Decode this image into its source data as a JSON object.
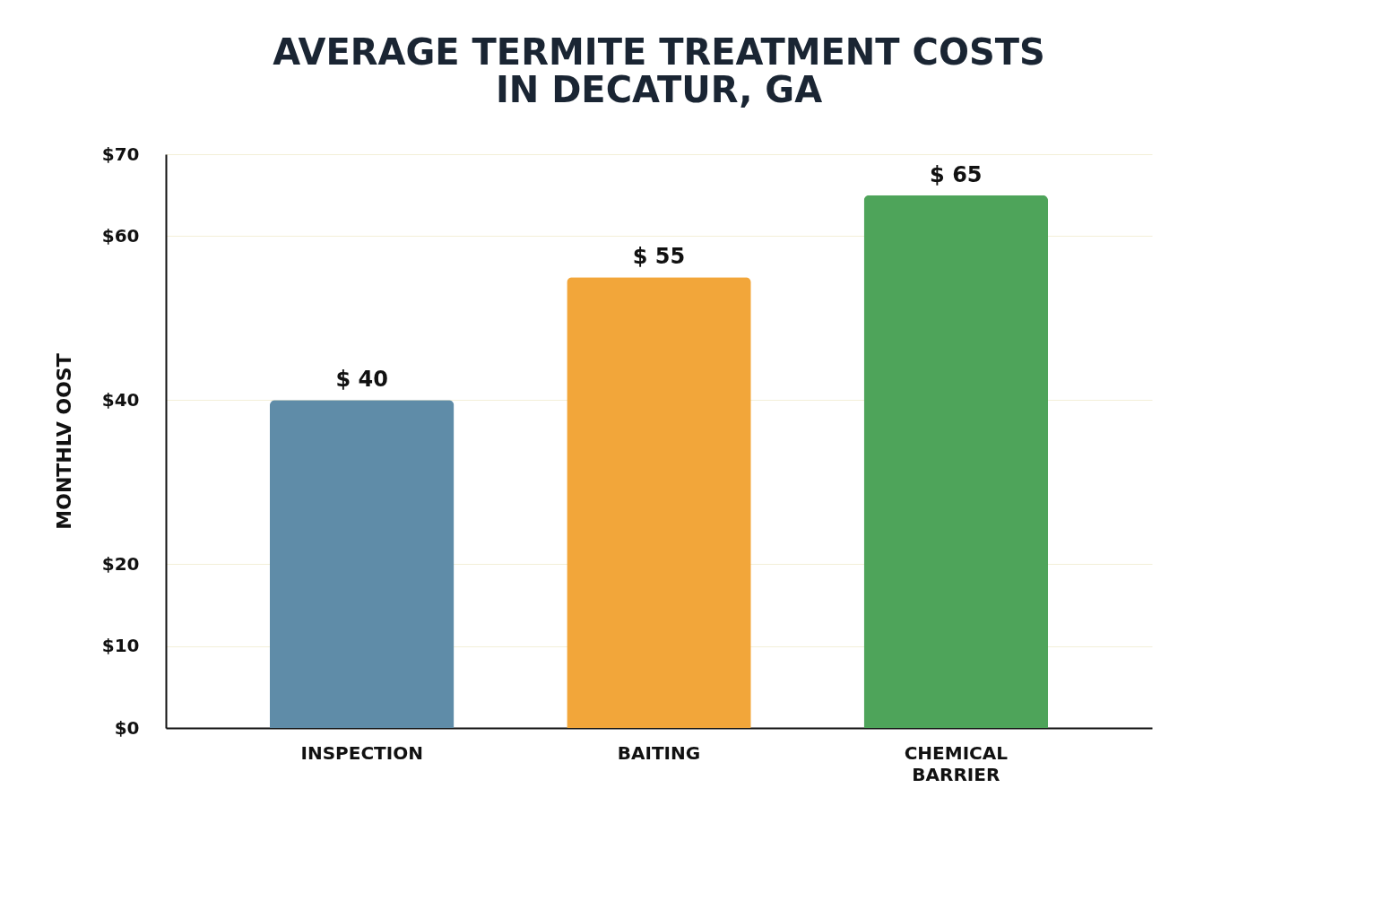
{
  "chart_data": {
    "type": "bar",
    "title": [
      "AVERAGE TERMITE TREATMENT COSTS",
      "IN DECATUR, GA"
    ],
    "ylabel": "MONTHLV OOST",
    "categories": [
      "INSPECTION",
      "BAITING",
      "CHEMICAL BARRIER"
    ],
    "values": [
      40,
      55,
      65
    ],
    "colors": [
      "#5f8ca8",
      "#f2a63a",
      "#4ea45a"
    ],
    "value_labels": [
      "$ 40",
      "$ 55",
      "$ 65"
    ],
    "ylim": [
      0,
      70
    ],
    "yticks": [
      {
        "value": 0,
        "label": "$0"
      },
      {
        "value": 10,
        "label": "$10"
      },
      {
        "value": 20,
        "label": "$20"
      },
      {
        "value": 40,
        "label": "$40"
      },
      {
        "value": 60,
        "label": "$60"
      },
      {
        "value": 70,
        "label": "$70"
      }
    ],
    "grid": "y"
  }
}
